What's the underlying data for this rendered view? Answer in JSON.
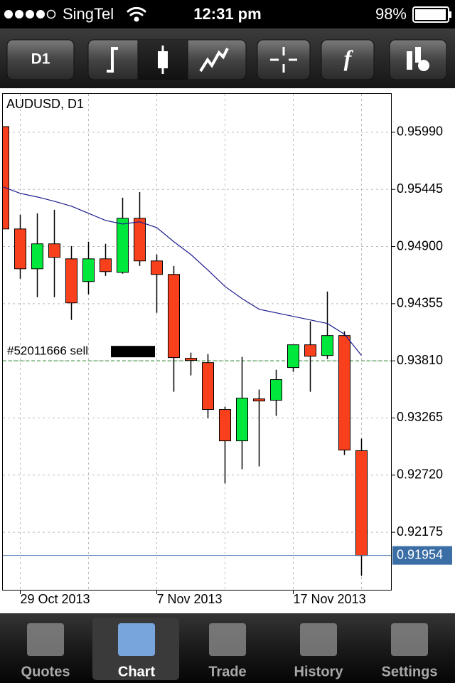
{
  "status_bar": {
    "carrier": "SingTel",
    "time": "12:31 pm",
    "battery": "98%"
  },
  "toolbar": {
    "timeframe": "D1",
    "function_button": "f"
  },
  "chart_data": {
    "type": "candlestick",
    "title": "AUDUSD, D1",
    "categories": [
      null,
      "29 Oct 2013",
      null,
      null,
      null,
      null,
      null,
      null,
      null,
      "7 Nov 2013",
      null,
      null,
      null,
      null,
      null,
      null,
      null,
      "17 Nov 2013",
      null,
      null,
      null,
      null
    ],
    "open": [
      0.96044,
      0.95068,
      0.94688,
      0.94926,
      0.94783,
      0.94566,
      0.94783,
      0.94654,
      0.9517,
      0.94763,
      0.94634,
      0.93834,
      0.93793,
      0.93346,
      0.93047,
      0.93447,
      0.93434,
      0.93746,
      0.93963,
      0.93861,
      0.94051,
      0.92953
    ],
    "high": [
      0.96044,
      0.95204,
      0.95217,
      0.95251,
      0.94905,
      0.94946,
      0.94926,
      0.95366,
      0.9542,
      0.94824,
      0.94715,
      0.93888,
      0.93875,
      0.93373,
      0.93848,
      0.93536,
      0.93725,
      0.93963,
      0.94187,
      0.94471,
      0.94092,
      0.93068
    ],
    "low": [
      0.95068,
      0.94593,
      0.94417,
      0.94417,
      0.942,
      0.94444,
      0.9462,
      0.94641,
      0.94715,
      0.94268,
      0.93515,
      0.93671,
      0.93264,
      0.92641,
      0.92776,
      0.92803,
      0.93285,
      0.93705,
      0.93515,
      0.93827,
      0.92912,
      0.91759
    ],
    "close": [
      0.95068,
      0.94688,
      0.94926,
      0.94797,
      0.94363,
      0.94783,
      0.94661,
      0.9517,
      0.94763,
      0.94634,
      0.93841,
      0.93814,
      0.93346,
      0.93047,
      0.93454,
      0.93427,
      0.93631,
      0.93963,
      0.93854,
      0.94051,
      0.92959,
      0.91954
    ],
    "up_color": "#00e83c",
    "down_color": "#f8401c",
    "ma": {
      "color": "#1c1c8c",
      "values": [
        0.95468,
        0.95407,
        0.95373,
        0.95332,
        0.95285,
        0.95217,
        0.95149,
        0.95115,
        0.95136,
        0.95081,
        0.94946,
        0.94824,
        0.94675,
        0.94519,
        0.94403,
        0.94302,
        0.94268,
        0.94234,
        0.942,
        0.94166,
        0.94064,
        0.93861
      ]
    },
    "ylim": [
      0.91626,
      0.96356
    ],
    "yticks": [
      {
        "value": 0.9599,
        "label": "0.95990"
      },
      0.95445,
      {
        "value": 0.949,
        "label": "0.94900"
      },
      0.94355,
      {
        "value": 0.9381,
        "label": "0.93810"
      },
      0.93265,
      {
        "value": 0.9272,
        "label": "0.92720"
      },
      0.92175
    ],
    "grid": true,
    "order": {
      "label": "#52011666 sell",
      "price": 0.9381
    },
    "bid": 0.91954
  },
  "tab_bar": {
    "tabs": [
      "Quotes",
      "Chart",
      "Trade",
      "History",
      "Settings"
    ],
    "selected": 1
  }
}
